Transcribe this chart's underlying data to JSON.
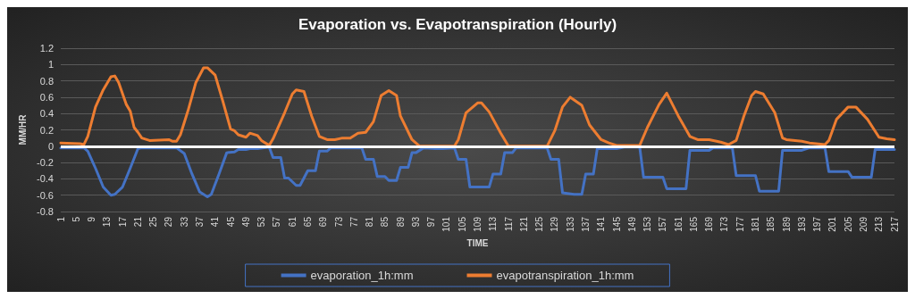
{
  "chart_data": {
    "type": "line",
    "title": "Evaporation vs. Evapotranspiration (Hourly)",
    "xlabel": "TIME",
    "ylabel": "MM/HR",
    "xlim": [
      1,
      217
    ],
    "xticks": [
      1,
      5,
      9,
      13,
      17,
      21,
      25,
      29,
      33,
      37,
      41,
      45,
      49,
      53,
      57,
      61,
      65,
      69,
      73,
      77,
      81,
      85,
      89,
      93,
      97,
      101,
      105,
      109,
      113,
      117,
      121,
      125,
      129,
      133,
      137,
      141,
      145,
      149,
      153,
      157,
      161,
      165,
      169,
      173,
      177,
      181,
      185,
      189,
      193,
      197,
      201,
      205,
      209,
      213,
      217
    ],
    "ylim": [
      -0.8,
      1.2
    ],
    "yticks": [
      -0.8,
      -0.6,
      -0.4,
      -0.2,
      0,
      0.2,
      0.4,
      0.6,
      0.8,
      1,
      1.2
    ],
    "grid": "y",
    "legend": "bottom",
    "marker": "none",
    "line_style": "solid",
    "ref_lines": [
      {
        "axis": "y",
        "value": 0,
        "color": "#ffffff"
      }
    ],
    "series": [
      {
        "name": "evaporation_1h:mm",
        "color": "#4472c4",
        "x": [
          1,
          7,
          8,
          10,
          12,
          14,
          15,
          17,
          19,
          21,
          22,
          31,
          33,
          35,
          37,
          39,
          40,
          42,
          44,
          46,
          47,
          49,
          50,
          52,
          55,
          56,
          58,
          59,
          60,
          62,
          63,
          65,
          67,
          68,
          70,
          71,
          79,
          80,
          82,
          83,
          85,
          86,
          88,
          89,
          91,
          92,
          93,
          95,
          98,
          100,
          103,
          104,
          106,
          107,
          112,
          113,
          115,
          116,
          118,
          119,
          127,
          128,
          130,
          131,
          134,
          136,
          137,
          139,
          140,
          145,
          147,
          151,
          152,
          157,
          158,
          163,
          164,
          169,
          170,
          175,
          176,
          181,
          182,
          187,
          188,
          193,
          195,
          199,
          200,
          205,
          206,
          211,
          212,
          217
        ],
        "values": [
          -0.02,
          -0.02,
          -0.06,
          -0.27,
          -0.5,
          -0.6,
          -0.59,
          -0.5,
          -0.27,
          -0.03,
          -0.02,
          -0.02,
          -0.09,
          -0.34,
          -0.56,
          -0.62,
          -0.59,
          -0.34,
          -0.08,
          -0.07,
          -0.04,
          -0.04,
          -0.03,
          -0.03,
          -0.01,
          -0.14,
          -0.14,
          -0.39,
          -0.39,
          -0.48,
          -0.48,
          -0.3,
          -0.3,
          -0.06,
          -0.06,
          -0.02,
          -0.02,
          -0.16,
          -0.16,
          -0.37,
          -0.37,
          -0.42,
          -0.42,
          -0.26,
          -0.26,
          -0.08,
          -0.08,
          -0.02,
          -0.03,
          -0.03,
          -0.02,
          -0.16,
          -0.16,
          -0.5,
          -0.5,
          -0.34,
          -0.34,
          -0.08,
          -0.08,
          -0.02,
          -0.02,
          -0.16,
          -0.16,
          -0.57,
          -0.59,
          -0.59,
          -0.34,
          -0.34,
          -0.03,
          -0.03,
          -0.01,
          -0.01,
          -0.38,
          -0.38,
          -0.52,
          -0.52,
          -0.05,
          -0.05,
          -0.02,
          -0.02,
          -0.36,
          -0.36,
          -0.55,
          -0.55,
          -0.05,
          -0.05,
          -0.02,
          -0.02,
          -0.31,
          -0.31,
          -0.38,
          -0.38,
          -0.04,
          -0.04
        ]
      },
      {
        "name": "evapotranspiration_1h:mm",
        "color": "#ed7d31",
        "x": [
          1,
          6,
          7,
          8,
          10,
          12,
          14,
          15,
          16,
          18,
          19,
          20,
          21,
          22,
          24,
          29,
          30,
          31,
          32,
          34,
          36,
          38,
          39,
          41,
          43,
          45,
          46,
          47,
          49,
          50,
          52,
          53,
          55,
          56,
          59,
          61,
          62,
          64,
          66,
          68,
          70,
          72,
          74,
          76,
          78,
          80,
          82,
          84,
          86,
          88,
          89,
          92,
          94,
          103,
          104,
          106,
          109,
          110,
          112,
          115,
          117,
          127,
          129,
          131,
          133,
          136,
          138,
          141,
          143,
          145,
          151,
          153,
          156,
          158,
          161,
          164,
          166,
          169,
          172,
          174,
          176,
          178,
          180,
          181,
          183,
          186,
          188,
          189,
          193,
          195,
          199,
          200,
          202,
          205,
          207,
          210,
          213,
          215,
          217
        ],
        "values": [
          0.04,
          0.03,
          0.02,
          0.12,
          0.48,
          0.69,
          0.85,
          0.86,
          0.78,
          0.51,
          0.43,
          0.23,
          0.17,
          0.1,
          0.07,
          0.08,
          0.06,
          0.06,
          0.14,
          0.44,
          0.78,
          0.96,
          0.96,
          0.87,
          0.55,
          0.21,
          0.19,
          0.14,
          0.11,
          0.16,
          0.13,
          0.07,
          0.01,
          0.09,
          0.41,
          0.64,
          0.69,
          0.67,
          0.37,
          0.12,
          0.08,
          0.08,
          0.1,
          0.1,
          0.16,
          0.17,
          0.3,
          0.62,
          0.68,
          0.62,
          0.37,
          0.08,
          0,
          0,
          0.08,
          0.41,
          0.53,
          0.53,
          0.42,
          0.16,
          0,
          0,
          0.19,
          0.48,
          0.6,
          0.5,
          0.26,
          0.08,
          0.04,
          0.01,
          0.01,
          0.23,
          0.51,
          0.65,
          0.37,
          0.12,
          0.08,
          0.08,
          0.05,
          0.02,
          0.07,
          0.37,
          0.62,
          0.67,
          0.64,
          0.41,
          0.1,
          0.08,
          0.06,
          0.04,
          0.02,
          0.07,
          0.33,
          0.48,
          0.48,
          0.33,
          0.11,
          0.09,
          0.08
        ]
      }
    ]
  }
}
